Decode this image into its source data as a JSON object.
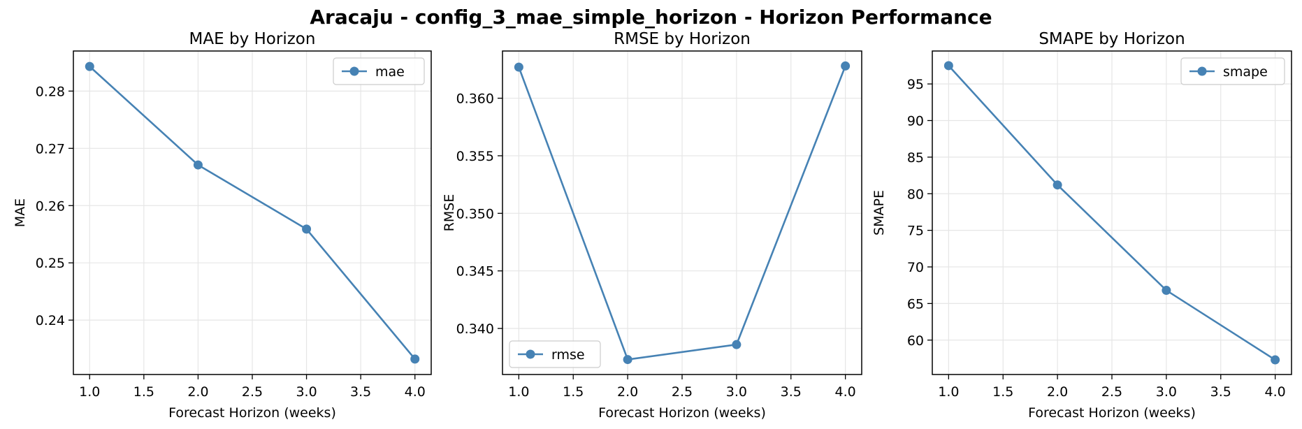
{
  "figure_title": "Aracaju - config_3_mae_simple_horizon - Horizon Performance",
  "chart_data": [
    {
      "type": "line",
      "title": "MAE by Horizon",
      "xlabel": "Forecast Horizon (weeks)",
      "ylabel": "MAE",
      "x": [
        1.0,
        2.0,
        3.0,
        4.0
      ],
      "series": [
        {
          "name": "mae",
          "values": [
            0.2843,
            0.2671,
            0.2559,
            0.2332
          ]
        }
      ],
      "xlim": [
        0.85,
        4.15
      ],
      "ylim": [
        0.2305,
        0.287
      ],
      "xticks": [
        "1.0",
        "1.5",
        "2.0",
        "2.5",
        "3.0",
        "3.5",
        "4.0"
      ],
      "yticks": [
        "0.24",
        "0.25",
        "0.26",
        "0.27",
        "0.28"
      ],
      "grid": true,
      "legend": "upper right"
    },
    {
      "type": "line",
      "title": "RMSE by Horizon",
      "xlabel": "Forecast Horizon (weeks)",
      "ylabel": "RMSE",
      "x": [
        1.0,
        2.0,
        3.0,
        4.0
      ],
      "series": [
        {
          "name": "rmse",
          "values": [
            0.3627,
            0.3373,
            0.3386,
            0.3628
          ]
        }
      ],
      "xlim": [
        0.85,
        4.15
      ],
      "ylim": [
        0.336,
        0.3641
      ],
      "xticks": [
        "1.0",
        "1.5",
        "2.0",
        "2.5",
        "3.0",
        "3.5",
        "4.0"
      ],
      "yticks": [
        "0.340",
        "0.345",
        "0.350",
        "0.355",
        "0.360"
      ],
      "grid": true,
      "legend": "lower left"
    },
    {
      "type": "line",
      "title": "SMAPE by Horizon",
      "xlabel": "Forecast Horizon (weeks)",
      "ylabel": "SMAPE",
      "x": [
        1.0,
        2.0,
        3.0,
        4.0
      ],
      "series": [
        {
          "name": "smape",
          "values": [
            97.5,
            81.2,
            66.8,
            57.3
          ]
        }
      ],
      "xlim": [
        0.85,
        4.15
      ],
      "ylim": [
        55.3,
        99.5
      ],
      "xticks": [
        "1.0",
        "1.5",
        "2.0",
        "2.5",
        "3.0",
        "3.5",
        "4.0"
      ],
      "yticks": [
        "60",
        "65",
        "70",
        "75",
        "80",
        "85",
        "90",
        "95"
      ],
      "grid": true,
      "legend": "upper right"
    }
  ],
  "colors": {
    "line": "#4682b4",
    "grid": "#e6e6e6",
    "axis": "#000000"
  }
}
